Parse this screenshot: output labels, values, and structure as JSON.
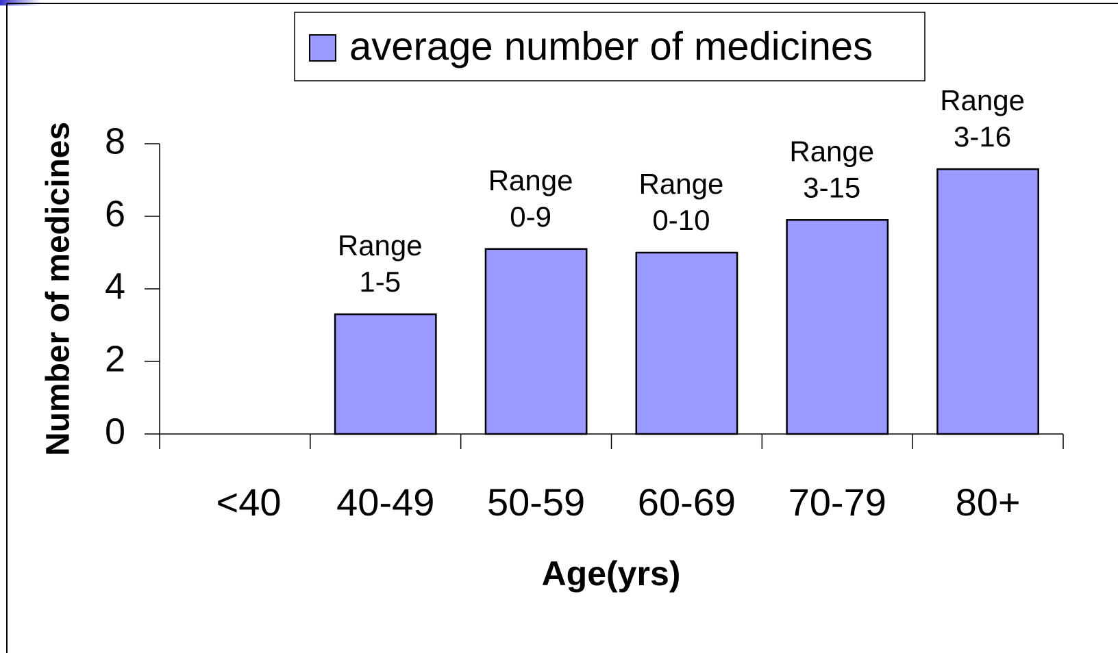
{
  "chart_data": {
    "type": "bar",
    "legend": "average number of medicines",
    "xlabel": "Age(yrs)",
    "ylabel": "Number of medicines",
    "categories": [
      "<40",
      "40-49",
      "50-59",
      "60-69",
      "70-79",
      "80+"
    ],
    "values": [
      null,
      3.3,
      5.1,
      5.0,
      5.9,
      7.3
    ],
    "annotations": [
      null,
      [
        "Range",
        "1-5"
      ],
      [
        "Range",
        "0-9"
      ],
      [
        "Range",
        "0-10"
      ],
      [
        "Range",
        "3-15"
      ],
      [
        "Range",
        "3-16"
      ]
    ],
    "color": "#9999ff",
    "ylim": [
      0,
      8
    ],
    "yticks": [
      0,
      2,
      4,
      6,
      8
    ],
    "grid": false
  }
}
